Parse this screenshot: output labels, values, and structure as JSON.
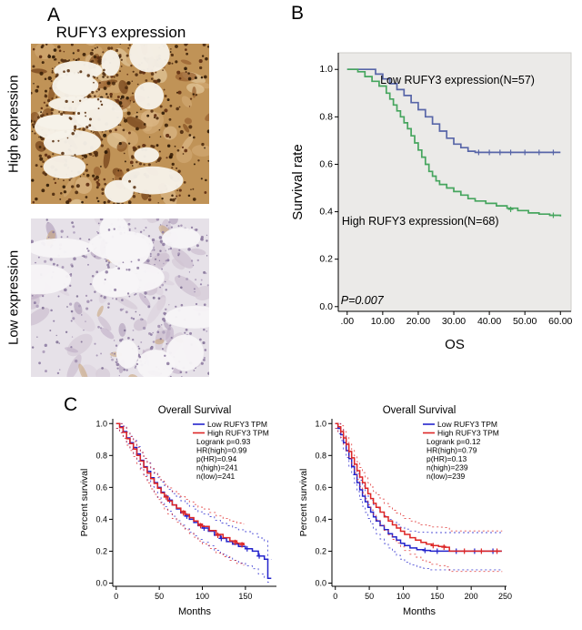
{
  "figure": {
    "panelA": {
      "label": "A",
      "title": "RUFY3 expression",
      "images": [
        {
          "label": "High expression"
        },
        {
          "label": "Low expression"
        }
      ]
    },
    "panelB": {
      "label": "B"
    },
    "panelC": {
      "label": "C"
    }
  },
  "chart_data": [
    {
      "type": "line",
      "subtype": "kaplan-meier",
      "style": "spss",
      "title": "",
      "xlabel": "OS",
      "ylabel": "Survival rate",
      "xlim": [
        -2.5,
        63
      ],
      "ylim": [
        -0.02,
        1.07
      ],
      "xticks": [
        0,
        10,
        20,
        30,
        40,
        50,
        60
      ],
      "xtick_labels": [
        ".00",
        "10.00",
        "20.00",
        "30.00",
        "40.00",
        "50.00",
        "60.00"
      ],
      "yticks": [
        0.0,
        0.2,
        0.4,
        0.6,
        0.8,
        1.0
      ],
      "ytick_labels": [
        "0.0",
        "0.2",
        "0.4",
        "0.6",
        "0.8",
        "1.0"
      ],
      "plot_bg": "#ebeae8",
      "grid": false,
      "legend_position": "none",
      "series": [
        {
          "name": "Low RUFY3 expression",
          "n": 57,
          "color": "#5866a8",
          "points": [
            [
              0,
              1
            ],
            [
              6,
              1
            ],
            [
              8,
              0.98
            ],
            [
              10,
              0.96
            ],
            [
              12,
              0.94
            ],
            [
              14,
              0.915
            ],
            [
              16,
              0.89
            ],
            [
              18,
              0.86
            ],
            [
              20,
              0.83
            ],
            [
              22,
              0.8
            ],
            [
              24,
              0.77
            ],
            [
              26,
              0.74
            ],
            [
              28,
              0.71
            ],
            [
              30,
              0.685
            ],
            [
              32,
              0.67
            ],
            [
              34,
              0.655
            ],
            [
              36,
              0.65
            ],
            [
              60,
              0.65
            ]
          ],
          "censors": [
            [
              37,
              0.65
            ],
            [
              40,
              0.65
            ],
            [
              43,
              0.65
            ],
            [
              46,
              0.65
            ],
            [
              50,
              0.65
            ],
            [
              54,
              0.65
            ],
            [
              58,
              0.65
            ]
          ]
        },
        {
          "name": "High RUFY3 expression",
          "n": 68,
          "color": "#46a55e",
          "points": [
            [
              0,
              1
            ],
            [
              3,
              0.99
            ],
            [
              5,
              0.97
            ],
            [
              7,
              0.95
            ],
            [
              9,
              0.93
            ],
            [
              11,
              0.9
            ],
            [
              12,
              0.875
            ],
            [
              13,
              0.85
            ],
            [
              14,
              0.825
            ],
            [
              15,
              0.8
            ],
            [
              16,
              0.775
            ],
            [
              17,
              0.75
            ],
            [
              18,
              0.72
            ],
            [
              19,
              0.69
            ],
            [
              20,
              0.66
            ],
            [
              21,
              0.63
            ],
            [
              22,
              0.6
            ],
            [
              23,
              0.57
            ],
            [
              24,
              0.55
            ],
            [
              25,
              0.53
            ],
            [
              26,
              0.515
            ],
            [
              28,
              0.5
            ],
            [
              30,
              0.485
            ],
            [
              32,
              0.47
            ],
            [
              34,
              0.455
            ],
            [
              36,
              0.445
            ],
            [
              39,
              0.435
            ],
            [
              42,
              0.425
            ],
            [
              45,
              0.415
            ],
            [
              48,
              0.405
            ],
            [
              51,
              0.395
            ],
            [
              54,
              0.39
            ],
            [
              57,
              0.385
            ],
            [
              60,
              0.38
            ]
          ],
          "censors": [
            [
              46,
              0.41
            ],
            [
              58,
              0.385
            ]
          ]
        }
      ],
      "annotations": [
        {
          "text": "Low RUFY3 expression(N=57)",
          "x": 9.3,
          "y": 0.94,
          "size": 12.5
        },
        {
          "text": "High RUFY3 expression(N=68)",
          "x": -1.5,
          "y": 0.345,
          "size": 12.5
        },
        {
          "text": "P=0.007",
          "x": -1.8,
          "y": 0.01,
          "size": 12.5,
          "italic": true
        }
      ]
    },
    {
      "type": "line",
      "subtype": "kaplan-meier",
      "style": "gepia",
      "title": "Overall Survival",
      "xlabel": "Months",
      "ylabel": "Percent survival",
      "xlim": [
        -4,
        186
      ],
      "ylim": [
        -0.02,
        1.03
      ],
      "xticks": [
        0,
        50,
        100,
        150
      ],
      "xtick_labels": [
        "0",
        "50",
        "100",
        "150"
      ],
      "yticks": [
        0.0,
        0.2,
        0.4,
        0.6,
        0.8,
        1.0
      ],
      "ytick_labels": [
        "0.0",
        "0.2",
        "0.4",
        "0.6",
        "0.8",
        "1.0"
      ],
      "grid": false,
      "legend_position": "top-right",
      "series": [
        {
          "name": "Low RUFY3 TPM",
          "color": "#2323cc",
          "ci": [
            0.03,
            0.12
          ],
          "points": [
            [
              0,
              1
            ],
            [
              4,
              0.98
            ],
            [
              8,
              0.95
            ],
            [
              12,
              0.91
            ],
            [
              16,
              0.88
            ],
            [
              20,
              0.85
            ],
            [
              24,
              0.81
            ],
            [
              28,
              0.77
            ],
            [
              32,
              0.73
            ],
            [
              36,
              0.7
            ],
            [
              40,
              0.66
            ],
            [
              44,
              0.63
            ],
            [
              48,
              0.6
            ],
            [
              52,
              0.57
            ],
            [
              56,
              0.545
            ],
            [
              60,
              0.52
            ],
            [
              65,
              0.49
            ],
            [
              70,
              0.465
            ],
            [
              75,
              0.44
            ],
            [
              80,
              0.42
            ],
            [
              85,
              0.4
            ],
            [
              90,
              0.38
            ],
            [
              95,
              0.36
            ],
            [
              100,
              0.345
            ],
            [
              107,
              0.325
            ],
            [
              114,
              0.3
            ],
            [
              121,
              0.28
            ],
            [
              128,
              0.26
            ],
            [
              135,
              0.245
            ],
            [
              142,
              0.23
            ],
            [
              150,
              0.215
            ],
            [
              158,
              0.2
            ],
            [
              165,
              0.17
            ],
            [
              172,
              0.15
            ],
            [
              176,
              0.03
            ],
            [
              180,
              0.03
            ]
          ],
          "censors": [
            [
              62,
              0.52
            ],
            [
              82,
              0.42
            ],
            [
              102,
              0.345
            ],
            [
              122,
              0.28
            ],
            [
              152,
              0.215
            ],
            [
              166,
              0.17
            ]
          ]
        },
        {
          "name": "High RUFY3 TPM",
          "color": "#dd2525",
          "ci": [
            0.03,
            0.13
          ],
          "points": [
            [
              0,
              1
            ],
            [
              4,
              0.975
            ],
            [
              8,
              0.945
            ],
            [
              12,
              0.905
            ],
            [
              16,
              0.875
            ],
            [
              20,
              0.84
            ],
            [
              24,
              0.8
            ],
            [
              28,
              0.765
            ],
            [
              32,
              0.725
            ],
            [
              36,
              0.69
            ],
            [
              40,
              0.655
            ],
            [
              44,
              0.625
            ],
            [
              48,
              0.595
            ],
            [
              52,
              0.565
            ],
            [
              56,
              0.54
            ],
            [
              60,
              0.515
            ],
            [
              65,
              0.49
            ],
            [
              70,
              0.47
            ],
            [
              75,
              0.45
            ],
            [
              80,
              0.43
            ],
            [
              85,
              0.41
            ],
            [
              90,
              0.39
            ],
            [
              95,
              0.37
            ],
            [
              100,
              0.355
            ],
            [
              108,
              0.33
            ],
            [
              116,
              0.305
            ],
            [
              124,
              0.285
            ],
            [
              132,
              0.265
            ],
            [
              140,
              0.25
            ],
            [
              148,
              0.24
            ]
          ],
          "censors": [
            [
              58,
              0.54
            ],
            [
              78,
              0.44
            ],
            [
              98,
              0.36
            ],
            [
              118,
              0.3
            ],
            [
              138,
              0.255
            ],
            [
              146,
              0.24
            ]
          ]
        }
      ],
      "legend": [
        {
          "label": "Low RUFY3 TPM",
          "color": "#2323cc"
        },
        {
          "label": "High RUFY3 TPM",
          "color": "#dd2525"
        },
        {
          "label": "Logrank p=0.93"
        },
        {
          "label": "HR(high)=0.99"
        },
        {
          "label": "p(HR)=0.94"
        },
        {
          "label": "n(high)=241"
        },
        {
          "label": "n(low)=241"
        }
      ],
      "annotations": []
    },
    {
      "type": "line",
      "subtype": "kaplan-meier",
      "style": "gepia",
      "title": "Overall Survival",
      "xlabel": "Months",
      "ylabel": "Percent survival",
      "xlim": [
        -5,
        252
      ],
      "ylim": [
        -0.02,
        1.03
      ],
      "xticks": [
        0,
        50,
        100,
        150,
        200,
        250
      ],
      "xtick_labels": [
        "0",
        "50",
        "100",
        "150",
        "200",
        "250"
      ],
      "yticks": [
        0.0,
        0.2,
        0.4,
        0.6,
        0.8,
        1.0
      ],
      "ytick_labels": [
        "0.0",
        "0.2",
        "0.4",
        "0.6",
        "0.8",
        "1.0"
      ],
      "grid": false,
      "legend_position": "top-right",
      "series": [
        {
          "name": "Low RUFY3 TPM",
          "color": "#2323cc",
          "ci": [
            0.03,
            0.12
          ],
          "points": [
            [
              0,
              1
            ],
            [
              4,
              0.97
            ],
            [
              8,
              0.93
            ],
            [
              12,
              0.88
            ],
            [
              16,
              0.83
            ],
            [
              20,
              0.78
            ],
            [
              24,
              0.73
            ],
            [
              28,
              0.68
            ],
            [
              32,
              0.63
            ],
            [
              36,
              0.585
            ],
            [
              40,
              0.545
            ],
            [
              44,
              0.51
            ],
            [
              48,
              0.475
            ],
            [
              52,
              0.445
            ],
            [
              56,
              0.415
            ],
            [
              60,
              0.39
            ],
            [
              66,
              0.36
            ],
            [
              72,
              0.335
            ],
            [
              78,
              0.31
            ],
            [
              84,
              0.29
            ],
            [
              90,
              0.27
            ],
            [
              96,
              0.25
            ],
            [
              102,
              0.235
            ],
            [
              110,
              0.22
            ],
            [
              120,
              0.21
            ],
            [
              130,
              0.205
            ],
            [
              140,
              0.2
            ],
            [
              245,
              0.2
            ]
          ],
          "censors": [
            [
              132,
              0.205
            ],
            [
              150,
              0.2
            ],
            [
              178,
              0.2
            ],
            [
              205,
              0.2
            ],
            [
              232,
              0.2
            ]
          ]
        },
        {
          "name": "High RUFY3 TPM",
          "color": "#dd2525",
          "ci": [
            0.03,
            0.13
          ],
          "points": [
            [
              0,
              1
            ],
            [
              4,
              0.98
            ],
            [
              8,
              0.95
            ],
            [
              12,
              0.91
            ],
            [
              16,
              0.87
            ],
            [
              20,
              0.825
            ],
            [
              24,
              0.785
            ],
            [
              28,
              0.745
            ],
            [
              32,
              0.705
            ],
            [
              36,
              0.665
            ],
            [
              40,
              0.63
            ],
            [
              44,
              0.595
            ],
            [
              48,
              0.56
            ],
            [
              52,
              0.53
            ],
            [
              56,
              0.5
            ],
            [
              60,
              0.475
            ],
            [
              66,
              0.445
            ],
            [
              72,
              0.415
            ],
            [
              78,
              0.39
            ],
            [
              84,
              0.365
            ],
            [
              90,
              0.345
            ],
            [
              96,
              0.325
            ],
            [
              102,
              0.305
            ],
            [
              110,
              0.285
            ],
            [
              118,
              0.27
            ],
            [
              126,
              0.255
            ],
            [
              134,
              0.245
            ],
            [
              142,
              0.235
            ],
            [
              152,
              0.23
            ],
            [
              162,
              0.225
            ],
            [
              168,
              0.2
            ],
            [
              245,
              0.2
            ]
          ],
          "censors": [
            [
              144,
              0.235
            ],
            [
              160,
              0.225
            ],
            [
              190,
              0.2
            ],
            [
              215,
              0.2
            ],
            [
              238,
              0.2
            ]
          ]
        }
      ],
      "legend": [
        {
          "label": "Low RUFY3 TPM",
          "color": "#2323cc"
        },
        {
          "label": "High RUFY3 TPM",
          "color": "#dd2525"
        },
        {
          "label": "Logrank p=0.12"
        },
        {
          "label": "HR(high)=0.79"
        },
        {
          "label": "p(HR)=0.13"
        },
        {
          "label": "n(high)=239"
        },
        {
          "label": "n(low)=239"
        }
      ],
      "annotations": []
    }
  ]
}
